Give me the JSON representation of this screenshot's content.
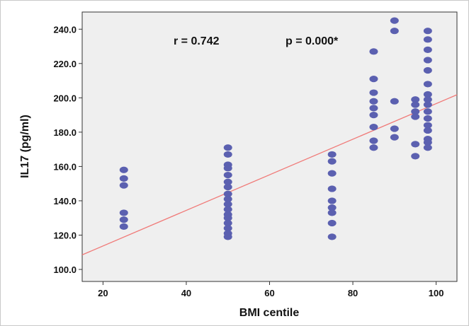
{
  "chart_data": {
    "type": "scatter",
    "xlabel": "BMI centile",
    "ylabel": "IL17 (pg/ml)",
    "xlim": [
      15,
      105
    ],
    "ylim": [
      93,
      250
    ],
    "x_ticks": [
      20,
      40,
      60,
      80,
      100
    ],
    "y_ticks": [
      100.0,
      120.0,
      140.0,
      160.0,
      180.0,
      200.0,
      220.0,
      240.0
    ],
    "x_tick_labels": [
      "20",
      "40",
      "60",
      "80",
      "100"
    ],
    "y_tick_labels": [
      "100.0",
      "120.0",
      "140.0",
      "160.0",
      "180.0",
      "200.0",
      "220.0",
      "240.0"
    ],
    "grid": false,
    "annotations": [
      "r = 0.742",
      "p = 0.000*"
    ],
    "colors": {
      "points": "#5b60b0",
      "fit_line": "#f07a78",
      "plot_bg": "#efefef"
    },
    "fit_line": {
      "x": [
        15,
        105
      ],
      "y": [
        108.5,
        201.8
      ]
    },
    "points": [
      {
        "x": 25,
        "y": 158
      },
      {
        "x": 25,
        "y": 153
      },
      {
        "x": 25,
        "y": 149
      },
      {
        "x": 25,
        "y": 133
      },
      {
        "x": 25,
        "y": 129
      },
      {
        "x": 25,
        "y": 125
      },
      {
        "x": 50,
        "y": 171
      },
      {
        "x": 50,
        "y": 167
      },
      {
        "x": 50,
        "y": 161
      },
      {
        "x": 50,
        "y": 159
      },
      {
        "x": 50,
        "y": 155
      },
      {
        "x": 50,
        "y": 151
      },
      {
        "x": 50,
        "y": 148
      },
      {
        "x": 50,
        "y": 144
      },
      {
        "x": 50,
        "y": 141
      },
      {
        "x": 50,
        "y": 138
      },
      {
        "x": 50,
        "y": 135
      },
      {
        "x": 50,
        "y": 132
      },
      {
        "x": 50,
        "y": 130
      },
      {
        "x": 50,
        "y": 127
      },
      {
        "x": 50,
        "y": 124
      },
      {
        "x": 50,
        "y": 121
      },
      {
        "x": 50,
        "y": 119
      },
      {
        "x": 75,
        "y": 167
      },
      {
        "x": 75,
        "y": 163
      },
      {
        "x": 75,
        "y": 156
      },
      {
        "x": 75,
        "y": 147
      },
      {
        "x": 75,
        "y": 140
      },
      {
        "x": 75,
        "y": 136
      },
      {
        "x": 75,
        "y": 133
      },
      {
        "x": 75,
        "y": 127
      },
      {
        "x": 75,
        "y": 119
      },
      {
        "x": 85,
        "y": 227
      },
      {
        "x": 85,
        "y": 211
      },
      {
        "x": 85,
        "y": 203
      },
      {
        "x": 85,
        "y": 198
      },
      {
        "x": 85,
        "y": 194
      },
      {
        "x": 85,
        "y": 190
      },
      {
        "x": 85,
        "y": 183
      },
      {
        "x": 85,
        "y": 175
      },
      {
        "x": 85,
        "y": 171
      },
      {
        "x": 90,
        "y": 245
      },
      {
        "x": 90,
        "y": 239
      },
      {
        "x": 90,
        "y": 198
      },
      {
        "x": 90,
        "y": 182
      },
      {
        "x": 90,
        "y": 177
      },
      {
        "x": 95,
        "y": 199
      },
      {
        "x": 95,
        "y": 196
      },
      {
        "x": 95,
        "y": 192
      },
      {
        "x": 95,
        "y": 189
      },
      {
        "x": 95,
        "y": 173
      },
      {
        "x": 95,
        "y": 166
      },
      {
        "x": 98,
        "y": 239
      },
      {
        "x": 98,
        "y": 234
      },
      {
        "x": 98,
        "y": 228
      },
      {
        "x": 98,
        "y": 222
      },
      {
        "x": 98,
        "y": 216
      },
      {
        "x": 98,
        "y": 208
      },
      {
        "x": 98,
        "y": 202
      },
      {
        "x": 98,
        "y": 199
      },
      {
        "x": 98,
        "y": 196
      },
      {
        "x": 98,
        "y": 192
      },
      {
        "x": 98,
        "y": 188
      },
      {
        "x": 98,
        "y": 184
      },
      {
        "x": 98,
        "y": 181
      },
      {
        "x": 98,
        "y": 176
      },
      {
        "x": 98,
        "y": 174
      },
      {
        "x": 98,
        "y": 171
      }
    ]
  }
}
